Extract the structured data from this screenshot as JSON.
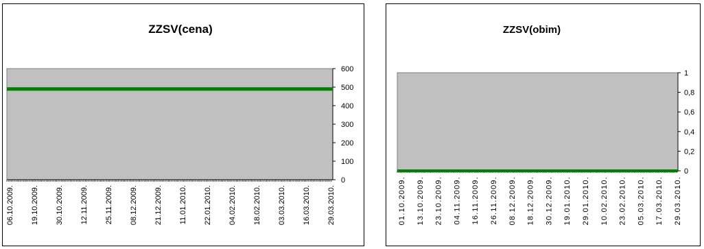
{
  "chart_data": [
    {
      "type": "line",
      "title": "ZZSV(cena)",
      "xlabel": "",
      "ylabel": "",
      "x": [
        "06.10.2009.",
        "19.10.2009.",
        "30.10.2009.",
        "12.11.2009.",
        "25.11.2009.",
        "08.12.2009.",
        "21.12.2009.",
        "11.01.2010.",
        "22.01.2010.",
        "04.02.2010.",
        "18.02.2010.",
        "03.03.2010.",
        "16.03.2010.",
        "29.03.2010."
      ],
      "series": [
        {
          "values": [
            490,
            490,
            490,
            490,
            490,
            490,
            490,
            490,
            490,
            490,
            490,
            490,
            490,
            490
          ],
          "color": "#008000"
        }
      ],
      "ylim": [
        0,
        600
      ],
      "yticks": [
        "0",
        "100",
        "200",
        "300",
        "400",
        "500",
        "600"
      ],
      "yaxis_side": "right",
      "plot_background": "#c0c0c0",
      "grid": false
    },
    {
      "type": "line",
      "title": "ZZSV(obim)",
      "xlabel": "",
      "ylabel": "",
      "x": [
        "01.10.2009.",
        "13.10.2009.",
        "23.10.2009.",
        "04.11.2009.",
        "16.11.2009.",
        "26.11.2009.",
        "08.12.2009.",
        "18.12.2009.",
        "30.12.2009.",
        "19.01.2010.",
        "29.01.2010.",
        "10.02.2010.",
        "23.02.2010.",
        "05.03.2010.",
        "17.03.2010.",
        "29.03.2010."
      ],
      "series": [
        {
          "values": [
            0,
            0,
            0,
            0,
            0,
            0,
            0,
            0,
            0,
            0,
            0,
            0,
            0,
            0,
            0,
            0
          ],
          "color": "#008000"
        }
      ],
      "ylim": [
        0,
        1
      ],
      "yticks": [
        "0",
        "0,2",
        "0,4",
        "0,6",
        "0,8",
        "1"
      ],
      "yaxis_side": "right",
      "plot_background": "#c0c0c0",
      "grid": false
    }
  ]
}
